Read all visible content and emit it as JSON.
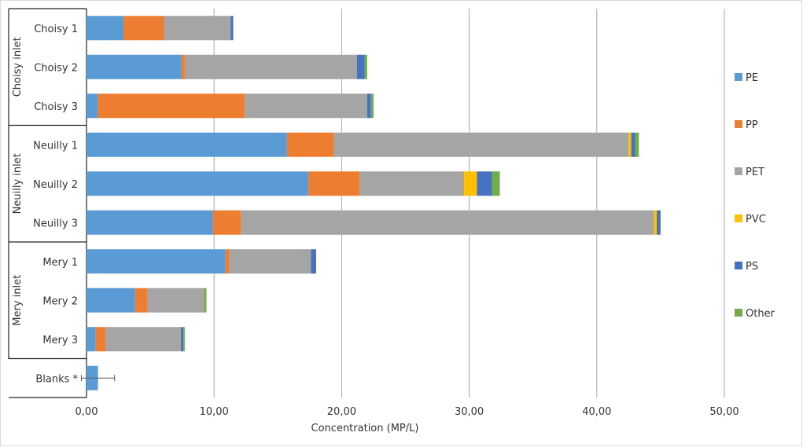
{
  "chart_data": {
    "type": "bar",
    "orientation": "horizontal",
    "stacked": true,
    "title": "",
    "xlabel": "Concentration (MP/L)",
    "ylabel": "",
    "xlim": [
      0,
      50
    ],
    "x_ticks": [
      0,
      10,
      20,
      30,
      40,
      50
    ],
    "x_tick_labels": [
      "0,00",
      "10,00",
      "20,00",
      "30,00",
      "40,00",
      "50,00"
    ],
    "grid": "vertical",
    "legend_position": "right",
    "groups": [
      {
        "label": "Choisy inlet",
        "categories": [
          "Choisy 1",
          "Choisy 2",
          "Choisy 3"
        ]
      },
      {
        "label": "Neuilly inlet",
        "categories": [
          "Neuilly 1",
          "Neuilly 2",
          "Neuilly 3"
        ]
      },
      {
        "label": "Mery inlet",
        "categories": [
          "Mery 1",
          "Mery 2",
          "Mery 3"
        ]
      },
      {
        "label": "",
        "categories": [
          "Blanks *"
        ]
      }
    ],
    "categories": [
      "Choisy 1",
      "Choisy 2",
      "Choisy 3",
      "Neuilly 1",
      "Neuilly 2",
      "Neuilly 3",
      "Mery 1",
      "Mery 2",
      "Mery 3",
      "Blanks *"
    ],
    "series": [
      {
        "name": "PE",
        "color": "#5b9bd5",
        "values": [
          2.9,
          7.4,
          0.9,
          15.7,
          17.4,
          9.9,
          10.9,
          3.8,
          0.7,
          0.9
        ]
      },
      {
        "name": "PP",
        "color": "#ed7d31",
        "values": [
          3.2,
          0.3,
          11.5,
          3.7,
          4.0,
          2.2,
          0.3,
          1.0,
          0.8,
          0.0
        ]
      },
      {
        "name": "PET",
        "color": "#a5a5a5",
        "values": [
          5.2,
          13.5,
          9.6,
          23.1,
          8.2,
          32.4,
          6.4,
          4.4,
          5.9,
          0.0
        ]
      },
      {
        "name": "PVC",
        "color": "#ffc000",
        "values": [
          0.0,
          0.0,
          0.0,
          0.2,
          1.0,
          0.2,
          0.0,
          0.0,
          0.0,
          0.0
        ]
      },
      {
        "name": "PS",
        "color": "#4472c4",
        "values": [
          0.2,
          0.6,
          0.3,
          0.3,
          1.2,
          0.3,
          0.4,
          0.0,
          0.2,
          0.0
        ]
      },
      {
        "name": "Other",
        "color": "#70ad47",
        "values": [
          0.0,
          0.2,
          0.2,
          0.3,
          0.6,
          0.0,
          0.0,
          0.2,
          0.1,
          0.0
        ]
      }
    ],
    "error_bars": [
      {
        "category": "Blanks *",
        "center": 0.9,
        "minus": 1.3,
        "plus": 1.3
      }
    ]
  }
}
